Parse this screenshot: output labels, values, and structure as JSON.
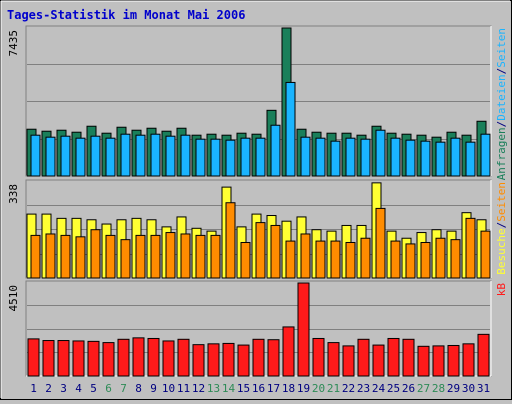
{
  "title": "Tages-Statistik im Monat Mai 2006",
  "colors": {
    "background": "#c0c0c0",
    "plot_background": "#c0c0c0",
    "title_text": "#0000cc",
    "grid": "#808080",
    "hits": "#1a7f5a",
    "files": "#1ab4ff",
    "pages": "#ff8c00",
    "visits": "#ffff33",
    "kb": "#ff1a1a",
    "weekend_label": "#2e8b57",
    "weekday_label": "#000080"
  },
  "chart_data": [
    {
      "type": "bar",
      "panel": "hits-files",
      "ymax_label": "7435",
      "ylim": [
        0,
        7435
      ],
      "right_label_parts": [
        {
          "text": "Anfragen",
          "color_key": "hits"
        },
        {
          "text": "/",
          "color_key": "weekday_label"
        },
        {
          "text": "Dateien",
          "color_key": "files"
        },
        {
          "text": "/",
          "color_key": "weekday_label"
        },
        {
          "text": "Seiten",
          "color_key": "files"
        }
      ],
      "categories": [
        "1",
        "2",
        "3",
        "4",
        "5",
        "6",
        "7",
        "8",
        "9",
        "10",
        "11",
        "12",
        "13",
        "14",
        "15",
        "16",
        "17",
        "18",
        "19",
        "20",
        "21",
        "22",
        "23",
        "24",
        "25",
        "26",
        "27",
        "28",
        "29",
        "30",
        "31"
      ],
      "weekend_days": [
        "6",
        "7",
        "13",
        "14",
        "20",
        "21",
        "27",
        "28"
      ],
      "series": [
        {
          "name": "Anfragen",
          "color_key": "hits",
          "values": [
            2350,
            2250,
            2300,
            2200,
            2500,
            2150,
            2450,
            2300,
            2400,
            2250,
            2400,
            2050,
            2100,
            2050,
            2150,
            2100,
            3300,
            7435,
            2350,
            2200,
            2150,
            2150,
            2050,
            2500,
            2150,
            2100,
            2050,
            1950,
            2200,
            2050,
            2750
          ]
        },
        {
          "name": "Dateien",
          "color_key": "files",
          "values": [
            2050,
            1950,
            2000,
            1900,
            2000,
            1900,
            2100,
            2050,
            2100,
            2000,
            2050,
            1850,
            1850,
            1800,
            1900,
            1900,
            2550,
            4700,
            1950,
            1900,
            1750,
            1900,
            1850,
            2300,
            1900,
            1800,
            1750,
            1700,
            1900,
            1700,
            2100
          ]
        }
      ]
    },
    {
      "type": "bar",
      "panel": "visits-pages",
      "ymax_label": "338",
      "ylim": [
        0,
        338
      ],
      "right_label_parts": [
        {
          "text": "Besuche",
          "color_key": "visits"
        },
        {
          "text": "/",
          "color_key": "weekday_label"
        },
        {
          "text": "Seiten",
          "color_key": "pages"
        }
      ],
      "categories": [
        "1",
        "2",
        "3",
        "4",
        "5",
        "6",
        "7",
        "8",
        "9",
        "10",
        "11",
        "12",
        "13",
        "14",
        "15",
        "16",
        "17",
        "18",
        "19",
        "20",
        "21",
        "22",
        "23",
        "24",
        "25",
        "26",
        "27",
        "28",
        "29",
        "30",
        "31"
      ],
      "series": [
        {
          "name": "Besuche",
          "color_key": "visits",
          "values": [
            225,
            225,
            210,
            210,
            205,
            190,
            205,
            210,
            205,
            180,
            215,
            175,
            165,
            320,
            180,
            225,
            220,
            200,
            215,
            170,
            165,
            185,
            185,
            335,
            165,
            140,
            160,
            170,
            165,
            230,
            205
          ]
        },
        {
          "name": "Seiten",
          "color_key": "pages",
          "values": [
            150,
            155,
            150,
            145,
            170,
            150,
            135,
            150,
            150,
            160,
            155,
            150,
            150,
            265,
            125,
            195,
            185,
            130,
            155,
            130,
            130,
            125,
            140,
            245,
            130,
            120,
            125,
            140,
            135,
            210,
            165
          ]
        }
      ]
    },
    {
      "type": "bar",
      "panel": "kb",
      "ymax_label": "4510",
      "ylim": [
        0,
        4510
      ],
      "right_label_parts": [
        {
          "text": "kB",
          "color_key": "kb"
        }
      ],
      "categories": [
        "1",
        "2",
        "3",
        "4",
        "5",
        "6",
        "7",
        "8",
        "9",
        "10",
        "11",
        "12",
        "13",
        "14",
        "15",
        "16",
        "17",
        "18",
        "19",
        "20",
        "21",
        "22",
        "23",
        "24",
        "25",
        "26",
        "27",
        "28",
        "29",
        "30",
        "31"
      ],
      "series": [
        {
          "name": "kB",
          "color_key": "kb",
          "values": [
            1800,
            1720,
            1720,
            1700,
            1680,
            1620,
            1780,
            1850,
            1820,
            1700,
            1780,
            1520,
            1560,
            1580,
            1500,
            1780,
            1760,
            2380,
            4510,
            1820,
            1620,
            1460,
            1780,
            1500,
            1820,
            1780,
            1440,
            1460,
            1480,
            1560,
            2020
          ]
        }
      ]
    }
  ]
}
